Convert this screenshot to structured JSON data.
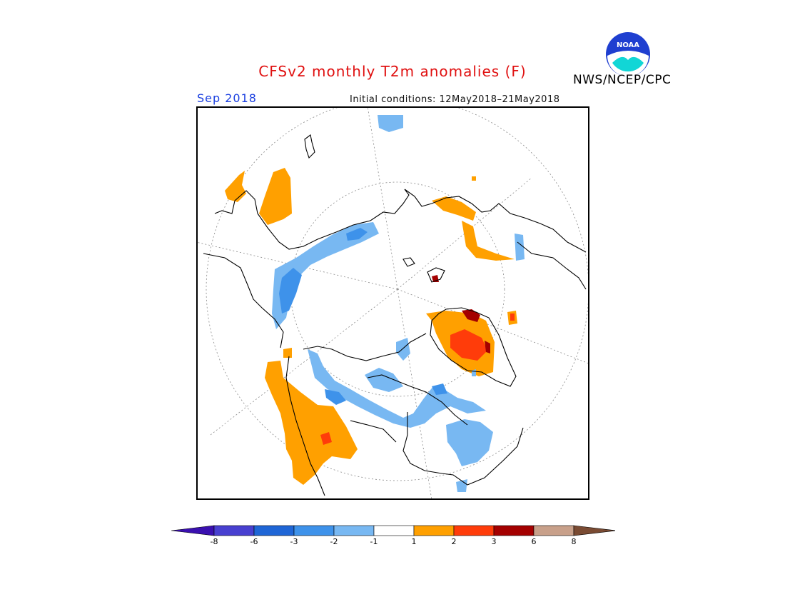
{
  "header": {
    "title": "CFSv2 monthly T2m anomalies (F)",
    "valid_month": "Sep 2018",
    "initial_conditions": "Initial conditions: 12May2018–21May2018",
    "agency": "NWS/NCEP/CPC",
    "logo_text": "NOAA"
  },
  "map": {
    "projection": "north-polar-stereographic",
    "legend": {
      "tick_labels": [
        "-8",
        "-6",
        "-3",
        "-2",
        "-1",
        "1",
        "2",
        "3",
        "6",
        "8"
      ],
      "colors": [
        "#3a10b0",
        "#4840d0",
        "#1f66d6",
        "#3e92ea",
        "#78b8f2",
        "#ffffff",
        "#ffa000",
        "#ff3c0a",
        "#a40000",
        "#c8a08a",
        "#7a4b33"
      ]
    },
    "colors": {
      "warm_1_2": "#ffa000",
      "warm_2_3": "#ff3c0a",
      "warm_3_6": "#a40000",
      "cool_1_2": "#78b8f2",
      "cool_2_3": "#3e92ea",
      "coast": "#000000",
      "graticule": "#8a8a8a"
    }
  }
}
